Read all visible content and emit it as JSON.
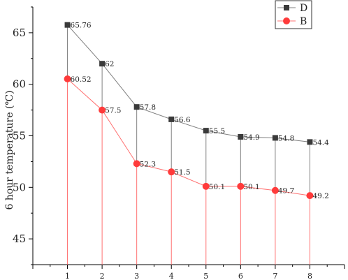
{
  "colors": {
    "D": "#3a3a3a",
    "D_line": "#808080",
    "B": "#ff3b3b",
    "B_line": "#ff7070",
    "axis": "#000000"
  },
  "chart_data": {
    "type": "line",
    "x": [
      1,
      2,
      3,
      4,
      5,
      6,
      7,
      8
    ],
    "series": [
      {
        "name": "D",
        "marker": "square",
        "values": [
          65.76,
          62,
          57.8,
          56.6,
          55.5,
          54.9,
          54.8,
          54.4
        ],
        "labels": [
          "65.76",
          "62",
          "57.8",
          "56.6",
          "55.5",
          "54.9",
          "54.8",
          "54.4"
        ]
      },
      {
        "name": "B",
        "marker": "circle",
        "values": [
          60.52,
          57.5,
          52.3,
          51.5,
          50.1,
          50.1,
          49.7,
          49.2
        ],
        "labels": [
          "60.52",
          "57.5",
          "52.3",
          "51.5",
          "50.1",
          "50.1",
          "49.7",
          "49.2"
        ]
      }
    ],
    "xlabel": "",
    "ylabel": "6 hour temperature (℃)",
    "xlim": [
      0,
      9
    ],
    "ylim": [
      42.5,
      67.5
    ],
    "yticks": [
      "45",
      "50",
      "55",
      "60",
      "65"
    ],
    "xticks": [
      "1",
      "2",
      "3",
      "4",
      "5",
      "6",
      "7",
      "8"
    ],
    "drop_lines": true,
    "grid": false,
    "legend_position": "top-right"
  }
}
